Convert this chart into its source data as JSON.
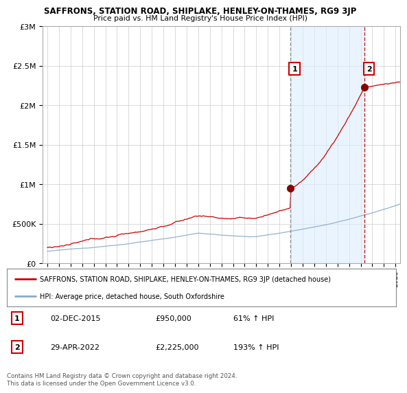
{
  "title": "SAFFRONS, STATION ROAD, SHIPLAKE, HENLEY-ON-THAMES, RG9 3JP",
  "subtitle": "Price paid vs. HM Land Registry's House Price Index (HPI)",
  "red_label": "SAFFRONS, STATION ROAD, SHIPLAKE, HENLEY-ON-THAMES, RG9 3JP (detached house)",
  "blue_label": "HPI: Average price, detached house, South Oxfordshire",
  "annotation1_date": "02-DEC-2015",
  "annotation1_value": "£950,000",
  "annotation1_pct": "61% ↑ HPI",
  "annotation2_date": "29-APR-2022",
  "annotation2_value": "£2,225,000",
  "annotation2_pct": "193% ↑ HPI",
  "copyright": "Contains HM Land Registry data © Crown copyright and database right 2024.\nThis data is licensed under the Open Government Licence v3.0.",
  "ylim": [
    0,
    3000000
  ],
  "yticks": [
    0,
    500000,
    1000000,
    1500000,
    2000000,
    2500000,
    3000000
  ],
  "ytick_labels": [
    "£0",
    "£500K",
    "£1M",
    "£1.5M",
    "£2M",
    "£2.5M",
    "£3M"
  ],
  "plot_bg": "#ffffff",
  "fig_bg": "#ffffff",
  "shade_bg": "#ddeeff",
  "red_color": "#cc0000",
  "blue_color": "#88aacc",
  "vline1_color": "#888888",
  "vline2_color": "#cc0000",
  "marker1_x": 2015.92,
  "marker1_y": 950000,
  "marker2_x": 2022.33,
  "marker2_y": 2225000,
  "vline1_x": 2015.92,
  "vline2_x": 2022.33,
  "xlim_left": 1994.6,
  "xlim_right": 2025.4
}
